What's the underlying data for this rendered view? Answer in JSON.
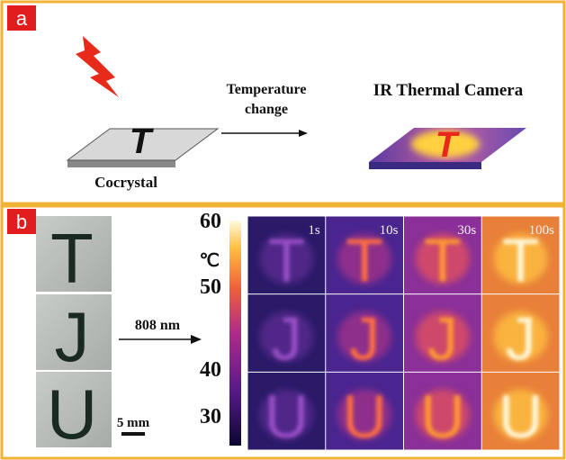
{
  "panel_a": {
    "label": "a",
    "plate_letter": "T",
    "sample_label": "Cocrystal",
    "arrow_label": [
      "Temperature",
      "change"
    ],
    "camera_label": "IR Thermal Camera"
  },
  "panel_b": {
    "label": "b",
    "letters": [
      "T",
      "J",
      "U"
    ],
    "scale_bar": "5 mm",
    "excitation": "808 nm",
    "colorbar": {
      "unit": "℃",
      "ticks": [
        "60",
        "50",
        "40",
        "30"
      ]
    },
    "times": [
      "1s",
      "10s",
      "30s",
      "100s"
    ]
  }
}
